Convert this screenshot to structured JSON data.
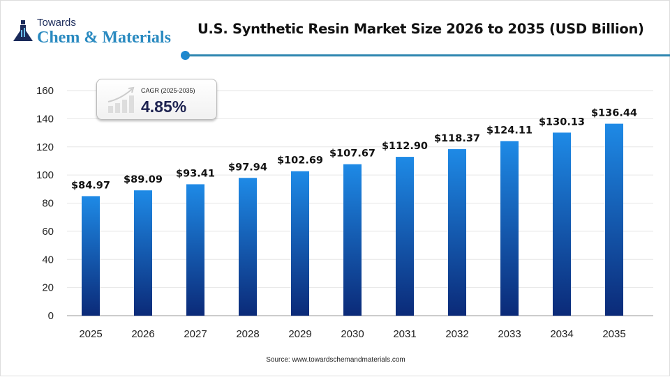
{
  "logo": {
    "line1": "Towards",
    "line2": "Chem & Materials"
  },
  "title": "U.S. Synthetic Resin Market Size 2026 to 2035 (USD Billion)",
  "cagr": {
    "label": "CAGR (2025-2035)",
    "value": "4.85%",
    "icon": "growth-chart-icon"
  },
  "source": "Source: www.towardschemandmaterials.com",
  "colors": {
    "bar_top": "#1e8ae6",
    "bar_bottom": "#0b2a78",
    "accent": "#2e86b0"
  },
  "chart_data": {
    "type": "bar",
    "title": "U.S. Synthetic Resin Market Size 2026 to 2035 (USD Billion)",
    "categories": [
      "2025",
      "2026",
      "2027",
      "2028",
      "2029",
      "2030",
      "2031",
      "2032",
      "2033",
      "2034",
      "2035"
    ],
    "values": [
      84.97,
      89.09,
      93.41,
      97.94,
      102.69,
      107.67,
      112.9,
      118.37,
      124.11,
      130.13,
      136.44
    ],
    "data_labels": [
      "$84.97",
      "$89.09",
      "$93.41",
      "$97.94",
      "$102.69",
      "$107.67",
      "$112.90",
      "$118.37",
      "$124.11",
      "$130.13",
      "$136.44"
    ],
    "ylim": [
      0,
      160
    ],
    "yticks": [
      0,
      20,
      40,
      60,
      80,
      100,
      120,
      140,
      160
    ],
    "grid": true,
    "xlabel": "",
    "ylabel": ""
  }
}
